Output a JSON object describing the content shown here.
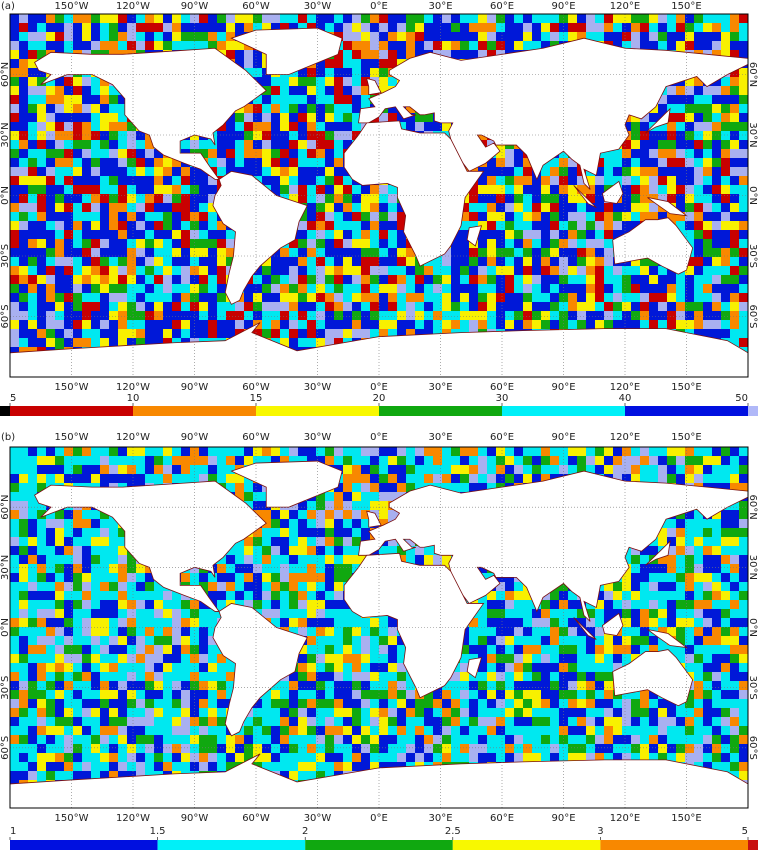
{
  "panels": [
    {
      "label": "(a)",
      "lon_labels": [
        "150°W",
        "120°W",
        "90°W",
        "60°W",
        "30°W",
        "0°E",
        "30°E",
        "60°E",
        "90°E",
        "120°E",
        "150°E"
      ],
      "lat_labels": [
        "60°N",
        "30°N",
        "0°N",
        "30°S",
        "60°S"
      ],
      "palette": [
        "#0018d8",
        "#0018d8",
        "#0018d8",
        "#00e8f0",
        "#00e8f0",
        "#10a810",
        "#f8f000",
        "#f88800",
        "#c80000",
        "#a8b0f0"
      ],
      "colorbar": {
        "ticks": [
          5,
          10,
          15,
          20,
          30,
          40,
          50
        ],
        "colors": [
          "#c80000",
          "#f88800",
          "#f8f800",
          "#10a810",
          "#00f0f8",
          "#0010e0"
        ],
        "extend_low": "#000000",
        "extend_high": "#b0b8f8"
      }
    },
    {
      "label": "(b)",
      "lon_labels": [
        "150°W",
        "120°W",
        "90°W",
        "60°W",
        "30°W",
        "0°E",
        "30°E",
        "60°E",
        "90°E",
        "120°E",
        "150°E"
      ],
      "lat_labels": [
        "60°N",
        "30°N",
        "0°N",
        "30°S",
        "60°S"
      ],
      "palette": [
        "#0018d8",
        "#0018d8",
        "#a8b0f0",
        "#00e8f0",
        "#00e8f0",
        "#00e8f0",
        "#10a810",
        "#f8f000",
        "#f88800"
      ],
      "colorbar": {
        "ticks": [
          1,
          1.5,
          2,
          2.5,
          3,
          5
        ],
        "colors": [
          "#0010e0",
          "#00f0f8",
          "#10a810",
          "#f8f800",
          "#f88800"
        ],
        "extend_high": "#c81010"
      }
    }
  ]
}
